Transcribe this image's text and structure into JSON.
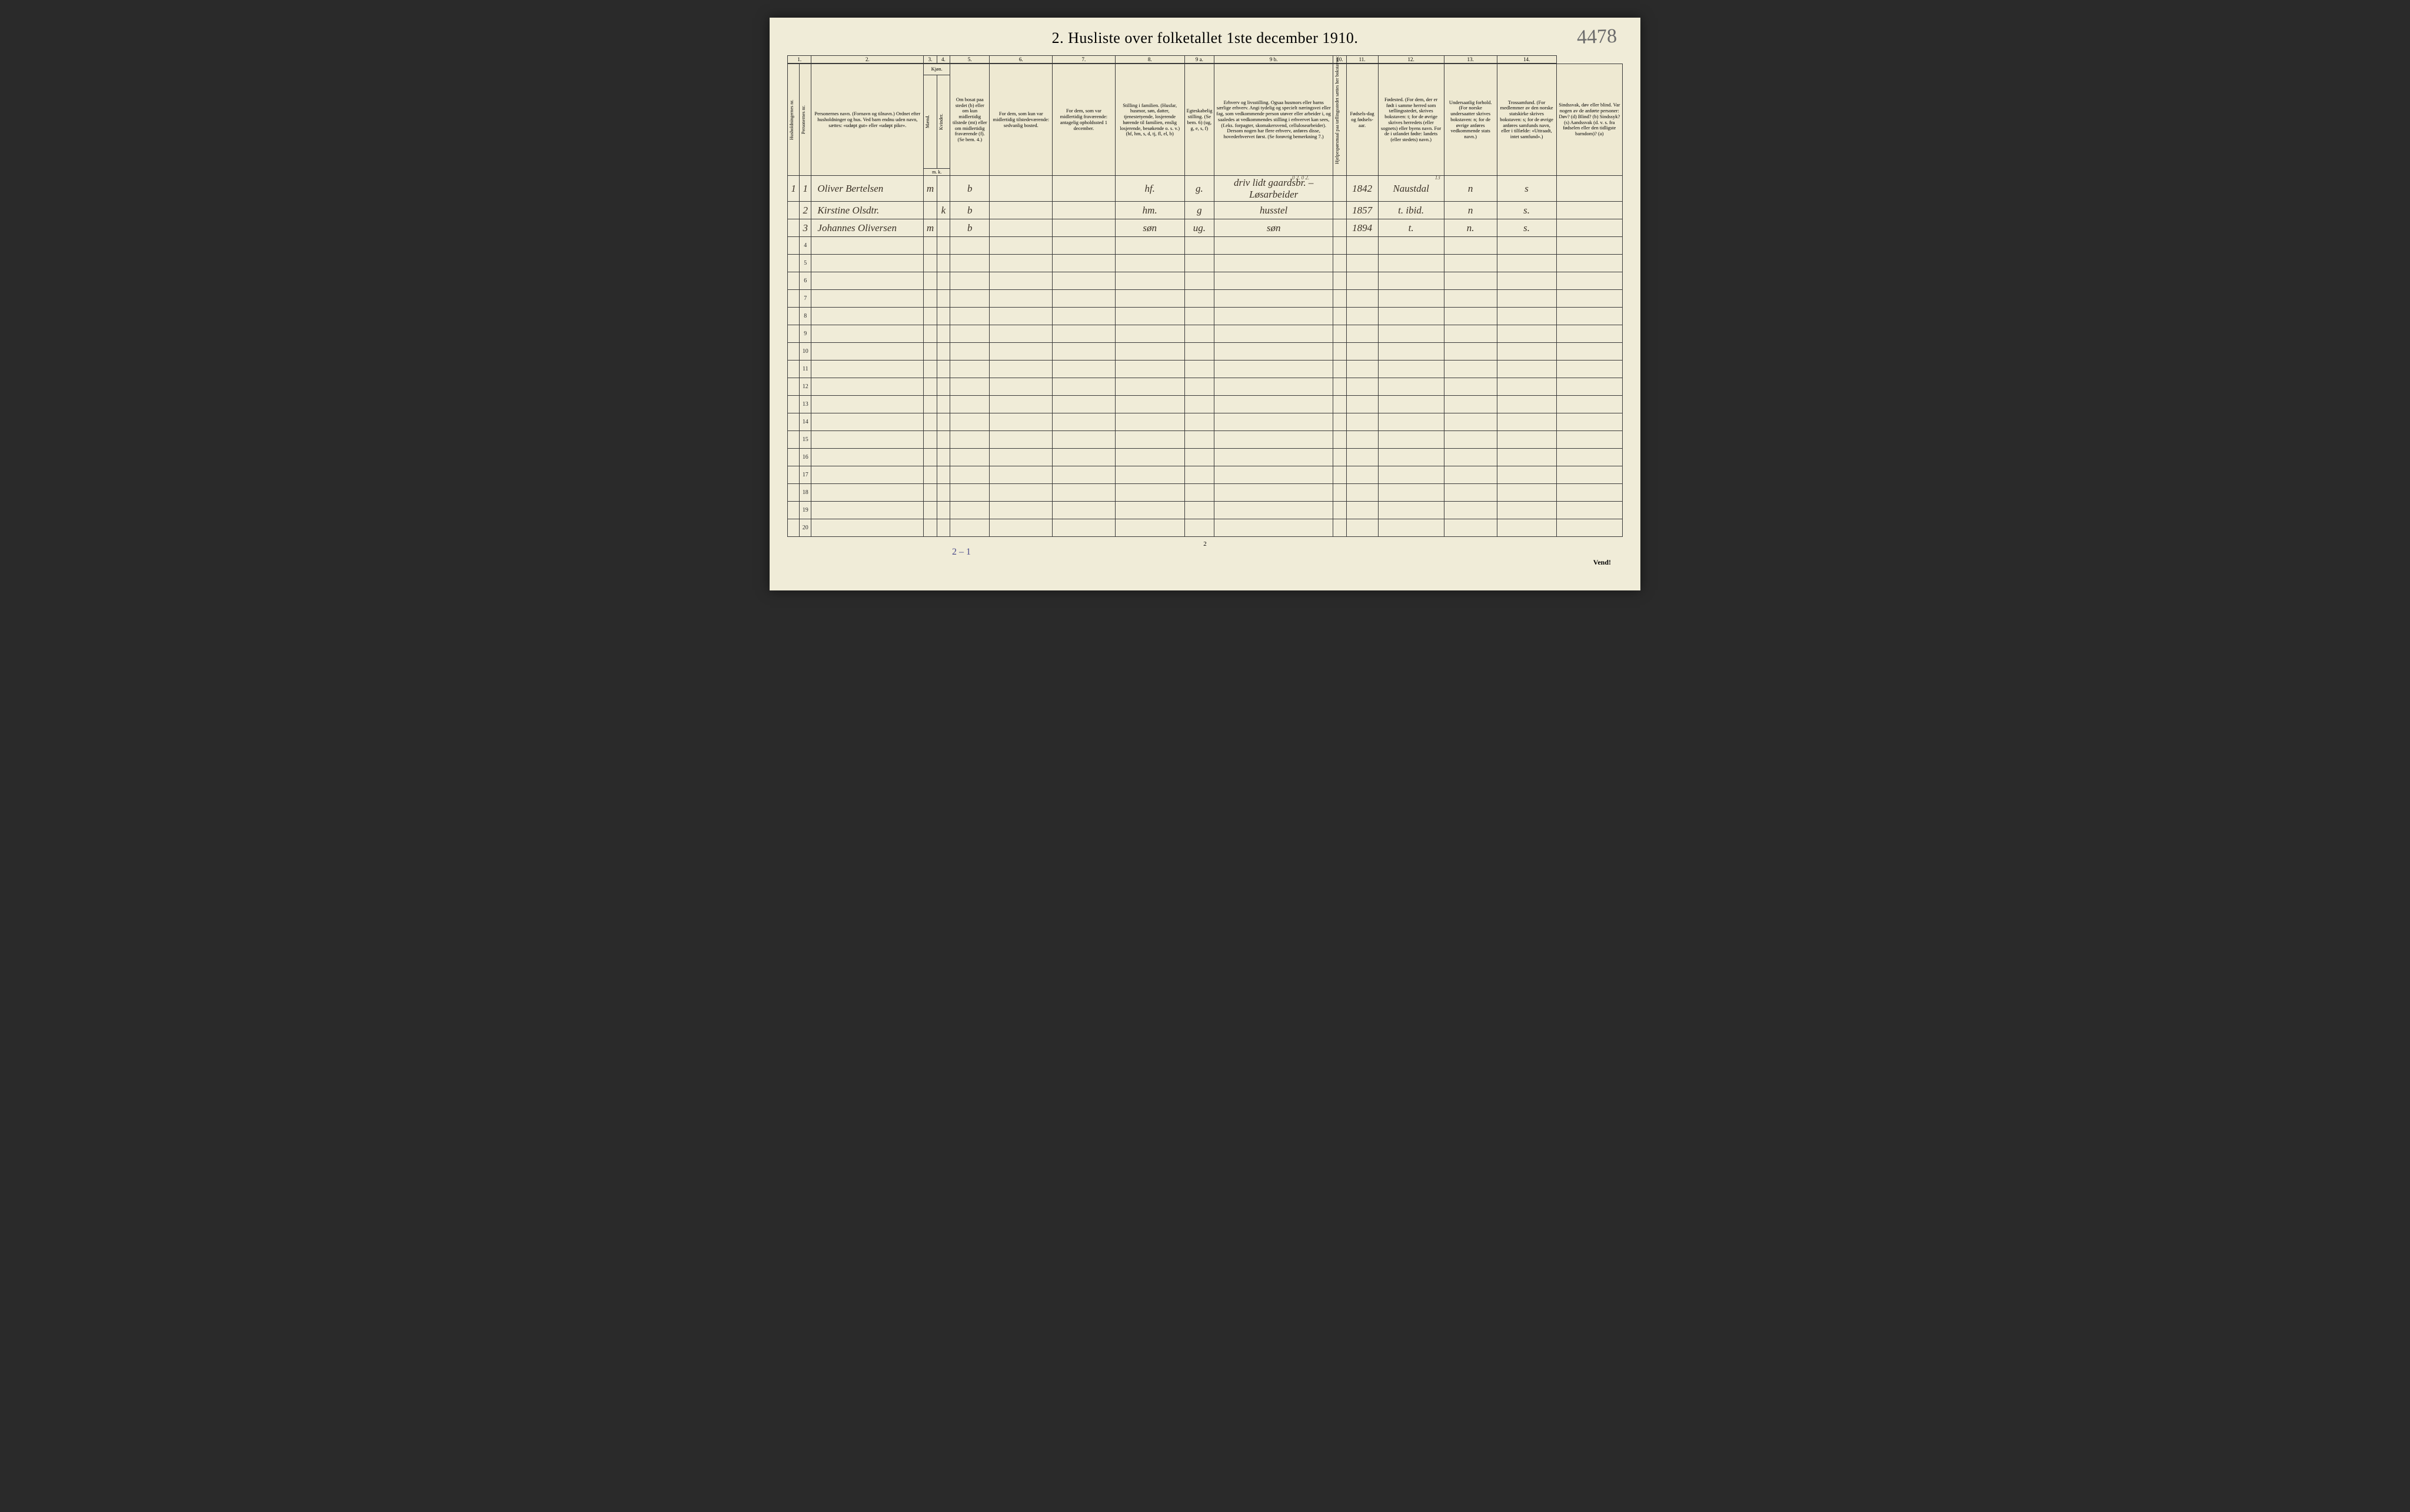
{
  "title": "2.  Husliste over folketallet 1ste december 1910.",
  "page_annotation_topright": "4478",
  "col_numbers": [
    "1.",
    "2.",
    "3.",
    "4.",
    "5.",
    "6.",
    "7.",
    "8.",
    "9 a.",
    "9 b.",
    "10.",
    "11.",
    "12.",
    "13.",
    "14."
  ],
  "headers": {
    "hh_nr": "Husholdningernes nr.",
    "pers_nr": "Personernes nr.",
    "name": "Personernes navn.\n(Fornavn og tilnavn.)\nOrdnet efter husholdninger og hus.\nVed barn endnu uden navn, sættes: «udøpt gut» eller «udøpt pike».",
    "kjon": "Kjøn.",
    "m": "Mænd.",
    "k": "Kvinder.",
    "mk_sub": "m.  k.",
    "bosat": "Om bosat paa stedet (b) eller om kun midlertidig tilstede (mt) eller om midlertidig fraværende (f).\n(Se bem. 4.)",
    "temp_present": "For dem, som kun var midlertidig tilstedeværende:\nsedvanlig bosted.",
    "temp_absent": "For dem, som var midlertidig fraværende:\nantagelig opholdssted 1 december.",
    "family_pos": "Stilling i familien.\n(Husfar, husmor, søn, datter, tjenestetyende, losjerende hørende til familien, enslig losjerende, besøkende o. s. v.)\n(hf, hm, s, d, tj, fl, el, b)",
    "marital": "Egteskabelig stilling.\n(Se bem. 6)\n(ug, g, e, s, f)",
    "occupation": "Erhverv og livsstilling.\nOgsaa husmors eller barns særlige erhverv.\nAngi tydelig og specielt næringsvei eller fag, som vedkommende person utøver eller arbeider i, og saaledes at vedkommendes stilling i erhvervet kan sees, (f.eks. forpagter, skomakersvend, cellulosearbeider). Dersom nogen har flere erhverv, anføres disse, hovederhvervet først.\n(Se forøvrig bemerkning 7.)",
    "hb": "Hjelpespørsmaal paa tællingsstedet sættes her bokstaven:",
    "birth_year": "Fødsels-dag og fødsels-aar.",
    "birth_place": "Fødested.\n(For dem, der er født i samme herred som tællingsstedet, skrives bokstaven: t; for de øvrige skrives herredets (eller sognets) eller byens navn.\nFor de i utlandet fødte: landets (eller stedets) navn.)",
    "nationality": "Undersaatlig forhold.\n(For norske undersaatter skrives bokstaven: n; for de øvrige anføres vedkommende stats navn.)",
    "religion": "Trossamfund.\n(For medlemmer av den norske statskirke skrives bokstaven: s; for de øvrige anføres samfunds navn, eller i tilfælde: «Uttraadt, intet samfund».)",
    "disability": "Sindssvak, døv eller blind.\nVar nogen av de anførte personer:\nDøv? (d)\nBlind? (b)\nSindssyk? (s)\nAandssvak (d. v. s. fra fødselen eller den tidligste barndom)? (a)"
  },
  "occ_note_above": "0 2. 0 2.",
  "bp_note_above": "13",
  "rows": [
    {
      "hh": "1",
      "pn": "1",
      "name": "Oliver Bertelsen",
      "m": "m",
      "k": "",
      "bosat": "b",
      "temp": "",
      "abs": "",
      "fam": "hf.",
      "mar": "g.",
      "occ": "driv lidt gaardsbr. – Løsarbeider",
      "hb": "",
      "year": "1842",
      "place": "Naustdal",
      "nat": "n",
      "rel": "s",
      "dis": ""
    },
    {
      "hh": "",
      "pn": "2",
      "name": "Kirstine Olsdtr.",
      "m": "",
      "k": "k",
      "bosat": "b",
      "temp": "",
      "abs": "",
      "fam": "hm.",
      "mar": "g",
      "occ": "husstel",
      "hb": "",
      "year": "1857",
      "place": "t. ibid.",
      "nat": "n",
      "rel": "s.",
      "dis": ""
    },
    {
      "hh": "",
      "pn": "3",
      "name": "Johannes Oliversen",
      "m": "m",
      "k": "",
      "bosat": "b",
      "temp": "",
      "abs": "",
      "fam": "søn",
      "mar": "ug.",
      "occ": "søn",
      "hb": "",
      "year": "1894",
      "place": "t.",
      "nat": "n.",
      "rel": "s.",
      "dis": ""
    }
  ],
  "empty_rows": [
    "4",
    "5",
    "6",
    "7",
    "8",
    "9",
    "10",
    "11",
    "12",
    "13",
    "14",
    "15",
    "16",
    "17",
    "18",
    "19",
    "20"
  ],
  "bottom_annotation": "2 – 1",
  "page_number_bottom": "2",
  "turn_over": "Vend!",
  "colors": {
    "paper": "#f0ecd8",
    "ink": "#3a3a3a",
    "handwriting": "#3a3126",
    "pencil": "#6b6b6b",
    "blue_ink": "#4a4a8a",
    "frame": "#2a2a2a"
  }
}
